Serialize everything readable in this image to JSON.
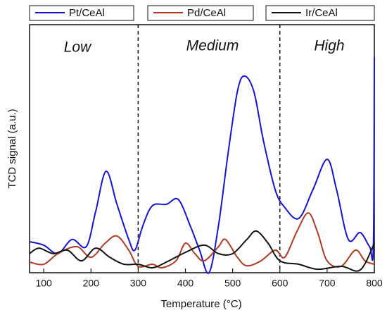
{
  "chart_data": {
    "type": "line",
    "xlabel": "Temperature (°C)",
    "ylabel": "TCD signal (a.u.)",
    "xlim": [
      70,
      800
    ],
    "xticks": [
      100,
      200,
      300,
      400,
      500,
      600,
      700,
      800
    ],
    "ylim": [
      0,
      10
    ],
    "vlines": [
      300,
      600
    ],
    "annotations": [
      "Low",
      "Medium",
      "High"
    ],
    "series": [
      {
        "name": "Pt/CeAl",
        "color": "#1414d2",
        "x": [
          70,
          100,
          130,
          160,
          190,
          210,
          232,
          255,
          280,
          293,
          310,
          330,
          360,
          385,
          410,
          430,
          450,
          470,
          490,
          510,
          525,
          545,
          565,
          590,
          610,
          640,
          670,
          700,
          720,
          745,
          770,
          790,
          798,
          800
        ],
        "values": [
          1.25,
          1.11,
          0.77,
          1.34,
          1.05,
          2.47,
          4.09,
          2.76,
          1.34,
          0.91,
          1.9,
          2.7,
          2.76,
          2.95,
          1.9,
          0.91,
          0,
          1.9,
          4.77,
          7.3,
          7.93,
          7.3,
          5.34,
          3.35,
          2.64,
          2.19,
          3.35,
          4.57,
          3.35,
          1.34,
          1.62,
          1.05,
          1.1,
          8.7
        ]
      },
      {
        "name": "Pd/CeAl",
        "color": "#b23a22",
        "x": [
          70,
          100,
          130,
          170,
          200,
          230,
          255,
          280,
          300,
          330,
          350,
          380,
          400,
          420,
          440,
          470,
          485,
          510,
          530,
          560,
          590,
          610,
          635,
          660,
          680,
          700,
          730,
          760,
          780,
          800
        ],
        "values": [
          0.43,
          0.34,
          0.77,
          1.05,
          0.62,
          1.19,
          1.48,
          0.91,
          0.26,
          0.34,
          0.2,
          0.48,
          1.19,
          0.77,
          0.48,
          1.05,
          1.34,
          0.62,
          0.28,
          0.48,
          0.91,
          0.62,
          1.62,
          2.41,
          1.62,
          0.48,
          0.26,
          0.91,
          0.48,
          0.34
        ]
      },
      {
        "name": "Ir/CeAl",
        "color": "#111111",
        "x": [
          70,
          90,
          120,
          150,
          180,
          210,
          240,
          270,
          300,
          330,
          360,
          400,
          440,
          470,
          500,
          530,
          550,
          575,
          600,
          640,
          680,
          730,
          770,
          800
        ],
        "values": [
          0.77,
          0.99,
          0.77,
          0.91,
          0.48,
          0.99,
          0.62,
          0.34,
          0.34,
          0.2,
          0.43,
          0.82,
          1.11,
          0.77,
          0.77,
          1.34,
          1.68,
          1.19,
          0.48,
          0.34,
          0.14,
          0.26,
          0.11,
          1.19
        ]
      }
    ]
  }
}
